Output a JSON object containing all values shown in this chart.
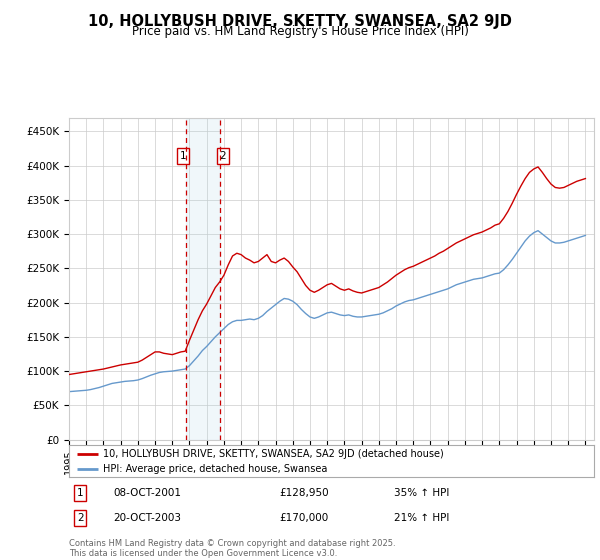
{
  "title": "10, HOLLYBUSH DRIVE, SKETTY, SWANSEA, SA2 9JD",
  "subtitle": "Price paid vs. HM Land Registry's House Price Index (HPI)",
  "ylim": [
    0,
    470000
  ],
  "yticks": [
    0,
    50000,
    100000,
    150000,
    200000,
    250000,
    300000,
    350000,
    400000,
    450000
  ],
  "ytick_labels": [
    "£0",
    "£50K",
    "£100K",
    "£150K",
    "£200K",
    "£250K",
    "£300K",
    "£350K",
    "£400K",
    "£450K"
  ],
  "legend_line1": "10, HOLLYBUSH DRIVE, SKETTY, SWANSEA, SA2 9JD (detached house)",
  "legend_line2": "HPI: Average price, detached house, Swansea",
  "sale1_date": "08-OCT-2001",
  "sale1_price": "£128,950",
  "sale1_hpi": "35% ↑ HPI",
  "sale2_date": "20-OCT-2003",
  "sale2_price": "£170,000",
  "sale2_hpi": "21% ↑ HPI",
  "footer": "Contains HM Land Registry data © Crown copyright and database right 2025.\nThis data is licensed under the Open Government Licence v3.0.",
  "line_color_red": "#cc0000",
  "line_color_blue": "#6699cc",
  "bg_color": "#ffffff",
  "grid_color": "#cccccc",
  "sale1_x": 2001.77,
  "sale2_x": 2003.8,
  "hpi_dates": [
    1995.0,
    1995.25,
    1995.5,
    1995.75,
    1996.0,
    1996.25,
    1996.5,
    1996.75,
    1997.0,
    1997.25,
    1997.5,
    1997.75,
    1998.0,
    1998.25,
    1998.5,
    1998.75,
    1999.0,
    1999.25,
    1999.5,
    1999.75,
    2000.0,
    2000.25,
    2000.5,
    2000.75,
    2001.0,
    2001.25,
    2001.5,
    2001.75,
    2002.0,
    2002.25,
    2002.5,
    2002.75,
    2003.0,
    2003.25,
    2003.5,
    2003.75,
    2004.0,
    2004.25,
    2004.5,
    2004.75,
    2005.0,
    2005.25,
    2005.5,
    2005.75,
    2006.0,
    2006.25,
    2006.5,
    2006.75,
    2007.0,
    2007.25,
    2007.5,
    2007.75,
    2008.0,
    2008.25,
    2008.5,
    2008.75,
    2009.0,
    2009.25,
    2009.5,
    2009.75,
    2010.0,
    2010.25,
    2010.5,
    2010.75,
    2011.0,
    2011.25,
    2011.5,
    2011.75,
    2012.0,
    2012.25,
    2012.5,
    2012.75,
    2013.0,
    2013.25,
    2013.5,
    2013.75,
    2014.0,
    2014.25,
    2014.5,
    2014.75,
    2015.0,
    2015.25,
    2015.5,
    2015.75,
    2016.0,
    2016.25,
    2016.5,
    2016.75,
    2017.0,
    2017.25,
    2017.5,
    2017.75,
    2018.0,
    2018.25,
    2018.5,
    2018.75,
    2019.0,
    2019.25,
    2019.5,
    2019.75,
    2020.0,
    2020.25,
    2020.5,
    2020.75,
    2021.0,
    2021.25,
    2021.5,
    2021.75,
    2022.0,
    2022.25,
    2022.5,
    2022.75,
    2023.0,
    2023.25,
    2023.5,
    2023.75,
    2024.0,
    2024.25,
    2024.5,
    2024.75,
    2025.0
  ],
  "hpi_values": [
    70000,
    70500,
    71000,
    71500,
    72000,
    73000,
    74500,
    76000,
    78000,
    80000,
    82000,
    83000,
    84000,
    85000,
    85500,
    86000,
    87000,
    89000,
    91500,
    94000,
    96000,
    98000,
    99000,
    99500,
    100000,
    101000,
    102000,
    103000,
    108000,
    115000,
    122000,
    130000,
    136000,
    143000,
    150000,
    156000,
    162000,
    168000,
    172000,
    174000,
    174000,
    175000,
    176000,
    175000,
    177000,
    181000,
    187000,
    192000,
    197000,
    202000,
    206000,
    205000,
    202000,
    197000,
    190000,
    184000,
    179000,
    177000,
    179000,
    182000,
    185000,
    186000,
    184000,
    182000,
    181000,
    182000,
    180000,
    179000,
    179000,
    180000,
    181000,
    182000,
    183000,
    185000,
    188000,
    191000,
    195000,
    198000,
    201000,
    203000,
    204000,
    206000,
    208000,
    210000,
    212000,
    214000,
    216000,
    218000,
    220000,
    223000,
    226000,
    228000,
    230000,
    232000,
    234000,
    235000,
    236000,
    238000,
    240000,
    242000,
    243000,
    248000,
    255000,
    263000,
    272000,
    281000,
    290000,
    297000,
    302000,
    305000,
    300000,
    295000,
    290000,
    287000,
    287000,
    288000,
    290000,
    292000,
    294000,
    296000,
    298000
  ],
  "price_dates": [
    1995.0,
    1995.25,
    1995.5,
    1995.75,
    1996.0,
    1996.25,
    1996.5,
    1996.75,
    1997.0,
    1997.25,
    1997.5,
    1997.75,
    1998.0,
    1998.25,
    1998.5,
    1998.75,
    1999.0,
    1999.25,
    1999.5,
    1999.75,
    2000.0,
    2000.25,
    2000.5,
    2000.75,
    2001.0,
    2001.25,
    2001.5,
    2001.75,
    2002.0,
    2002.25,
    2002.5,
    2002.75,
    2003.0,
    2003.25,
    2003.5,
    2003.75,
    2004.0,
    2004.25,
    2004.5,
    2004.75,
    2005.0,
    2005.25,
    2005.5,
    2005.75,
    2006.0,
    2006.25,
    2006.5,
    2006.75,
    2007.0,
    2007.25,
    2007.5,
    2007.75,
    2008.0,
    2008.25,
    2008.5,
    2008.75,
    2009.0,
    2009.25,
    2009.5,
    2009.75,
    2010.0,
    2010.25,
    2010.5,
    2010.75,
    2011.0,
    2011.25,
    2011.5,
    2011.75,
    2012.0,
    2012.25,
    2012.5,
    2012.75,
    2013.0,
    2013.25,
    2013.5,
    2013.75,
    2014.0,
    2014.25,
    2014.5,
    2014.75,
    2015.0,
    2015.25,
    2015.5,
    2015.75,
    2016.0,
    2016.25,
    2016.5,
    2016.75,
    2017.0,
    2017.25,
    2017.5,
    2017.75,
    2018.0,
    2018.25,
    2018.5,
    2018.75,
    2019.0,
    2019.25,
    2019.5,
    2019.75,
    2020.0,
    2020.25,
    2020.5,
    2020.75,
    2021.0,
    2021.25,
    2021.5,
    2021.75,
    2022.0,
    2022.25,
    2022.5,
    2022.75,
    2023.0,
    2023.25,
    2023.5,
    2023.75,
    2024.0,
    2024.25,
    2024.5,
    2024.75,
    2025.0
  ],
  "price_values": [
    95000,
    96000,
    97000,
    98000,
    99000,
    100000,
    101000,
    102000,
    103000,
    104500,
    106000,
    107500,
    109000,
    110000,
    111000,
    112000,
    113000,
    116000,
    120000,
    124000,
    128000,
    128000,
    126000,
    125000,
    124000,
    126000,
    128000,
    129000,
    145000,
    160000,
    175000,
    188000,
    198000,
    210000,
    222000,
    230000,
    240000,
    255000,
    268000,
    272000,
    270000,
    265000,
    262000,
    258000,
    260000,
    265000,
    270000,
    260000,
    258000,
    262000,
    265000,
    260000,
    252000,
    245000,
    235000,
    225000,
    218000,
    215000,
    218000,
    222000,
    226000,
    228000,
    224000,
    220000,
    218000,
    220000,
    217000,
    215000,
    214000,
    216000,
    218000,
    220000,
    222000,
    226000,
    230000,
    235000,
    240000,
    244000,
    248000,
    251000,
    253000,
    256000,
    259000,
    262000,
    265000,
    268000,
    272000,
    275000,
    279000,
    283000,
    287000,
    290000,
    293000,
    296000,
    299000,
    301000,
    303000,
    306000,
    309000,
    313000,
    315000,
    323000,
    333000,
    345000,
    358000,
    370000,
    381000,
    390000,
    395000,
    398000,
    390000,
    381000,
    373000,
    368000,
    367000,
    368000,
    371000,
    374000,
    377000,
    379000,
    381000
  ],
  "xtick_years": [
    1995,
    1996,
    1997,
    1998,
    1999,
    2000,
    2001,
    2002,
    2003,
    2004,
    2005,
    2006,
    2007,
    2008,
    2009,
    2010,
    2011,
    2012,
    2013,
    2014,
    2015,
    2016,
    2017,
    2018,
    2019,
    2020,
    2021,
    2022,
    2023,
    2024,
    2025
  ]
}
